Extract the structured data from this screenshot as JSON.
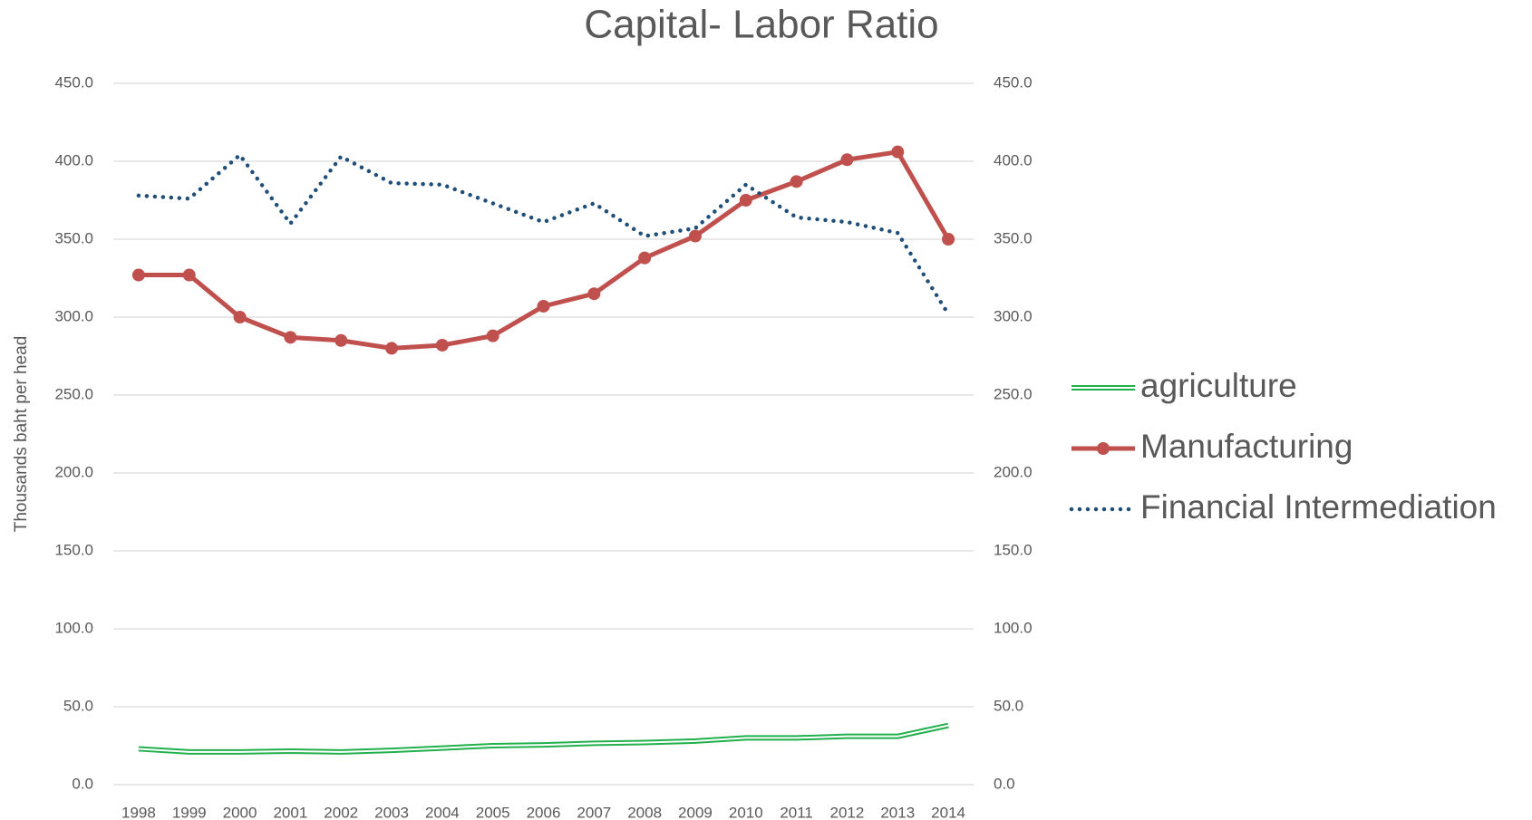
{
  "chart_data": {
    "type": "line",
    "title": "Capital- Labor Ratio",
    "y_label": "Thousands  baht per head",
    "categories": [
      "1998",
      "1999",
      "2000",
      "2001",
      "2002",
      "2003",
      "2004",
      "2005",
      "2006",
      "2007",
      "2008",
      "2009",
      "2010",
      "2011",
      "2012",
      "2013",
      "2014"
    ],
    "series": [
      {
        "name": "agriculture",
        "color": "#22b04c",
        "line_style": "double",
        "markers": false,
        "values": [
          23,
          21,
          21,
          21.5,
          21,
          22,
          23.5,
          25,
          25.5,
          26.5,
          27,
          28,
          30,
          30,
          31,
          31,
          38
        ]
      },
      {
        "name": "Manufacturing",
        "color": "#c0504d",
        "line_style": "solid",
        "markers": true,
        "values": [
          327,
          327,
          300,
          287,
          285,
          280,
          282,
          288,
          307,
          315,
          338,
          352,
          375,
          387,
          401,
          406,
          350
        ]
      },
      {
        "name": "Financial Intermediation",
        "color": "#1f4e79",
        "line_style": "dotted",
        "markers": false,
        "values": [
          378,
          376,
          404,
          360,
          403,
          386,
          385,
          373,
          361,
          373,
          352,
          357,
          385,
          364,
          361,
          354,
          302
        ]
      }
    ],
    "ylim": [
      0,
      450
    ],
    "yticks": [
      {
        "value": 0,
        "label": "0.0"
      },
      {
        "value": 50,
        "label": "50.0"
      },
      {
        "value": 100,
        "label": "100.0"
      },
      {
        "value": 150,
        "label": "150.0"
      },
      {
        "value": 200,
        "label": "200.0"
      },
      {
        "value": 250,
        "label": "250.0"
      },
      {
        "value": 300,
        "label": "300.0"
      },
      {
        "value": 350,
        "label": "350.0"
      },
      {
        "value": 400,
        "label": "400.0"
      },
      {
        "value": 450,
        "label": "450.0"
      }
    ],
    "y2lim": [
      0,
      450
    ],
    "y2ticks": [
      {
        "value": 0,
        "label": "0.0"
      },
      {
        "value": 50,
        "label": "50.0"
      },
      {
        "value": 100,
        "label": "100.0"
      },
      {
        "value": 150,
        "label": "150.0"
      },
      {
        "value": 200,
        "label": "200.0"
      },
      {
        "value": 250,
        "label": "250.0"
      },
      {
        "value": 300,
        "label": "300.0"
      },
      {
        "value": 350,
        "label": "350.0"
      },
      {
        "value": 400,
        "label": "400.0"
      },
      {
        "value": 450,
        "label": "450.0"
      }
    ],
    "grid": true,
    "legend": "right"
  }
}
